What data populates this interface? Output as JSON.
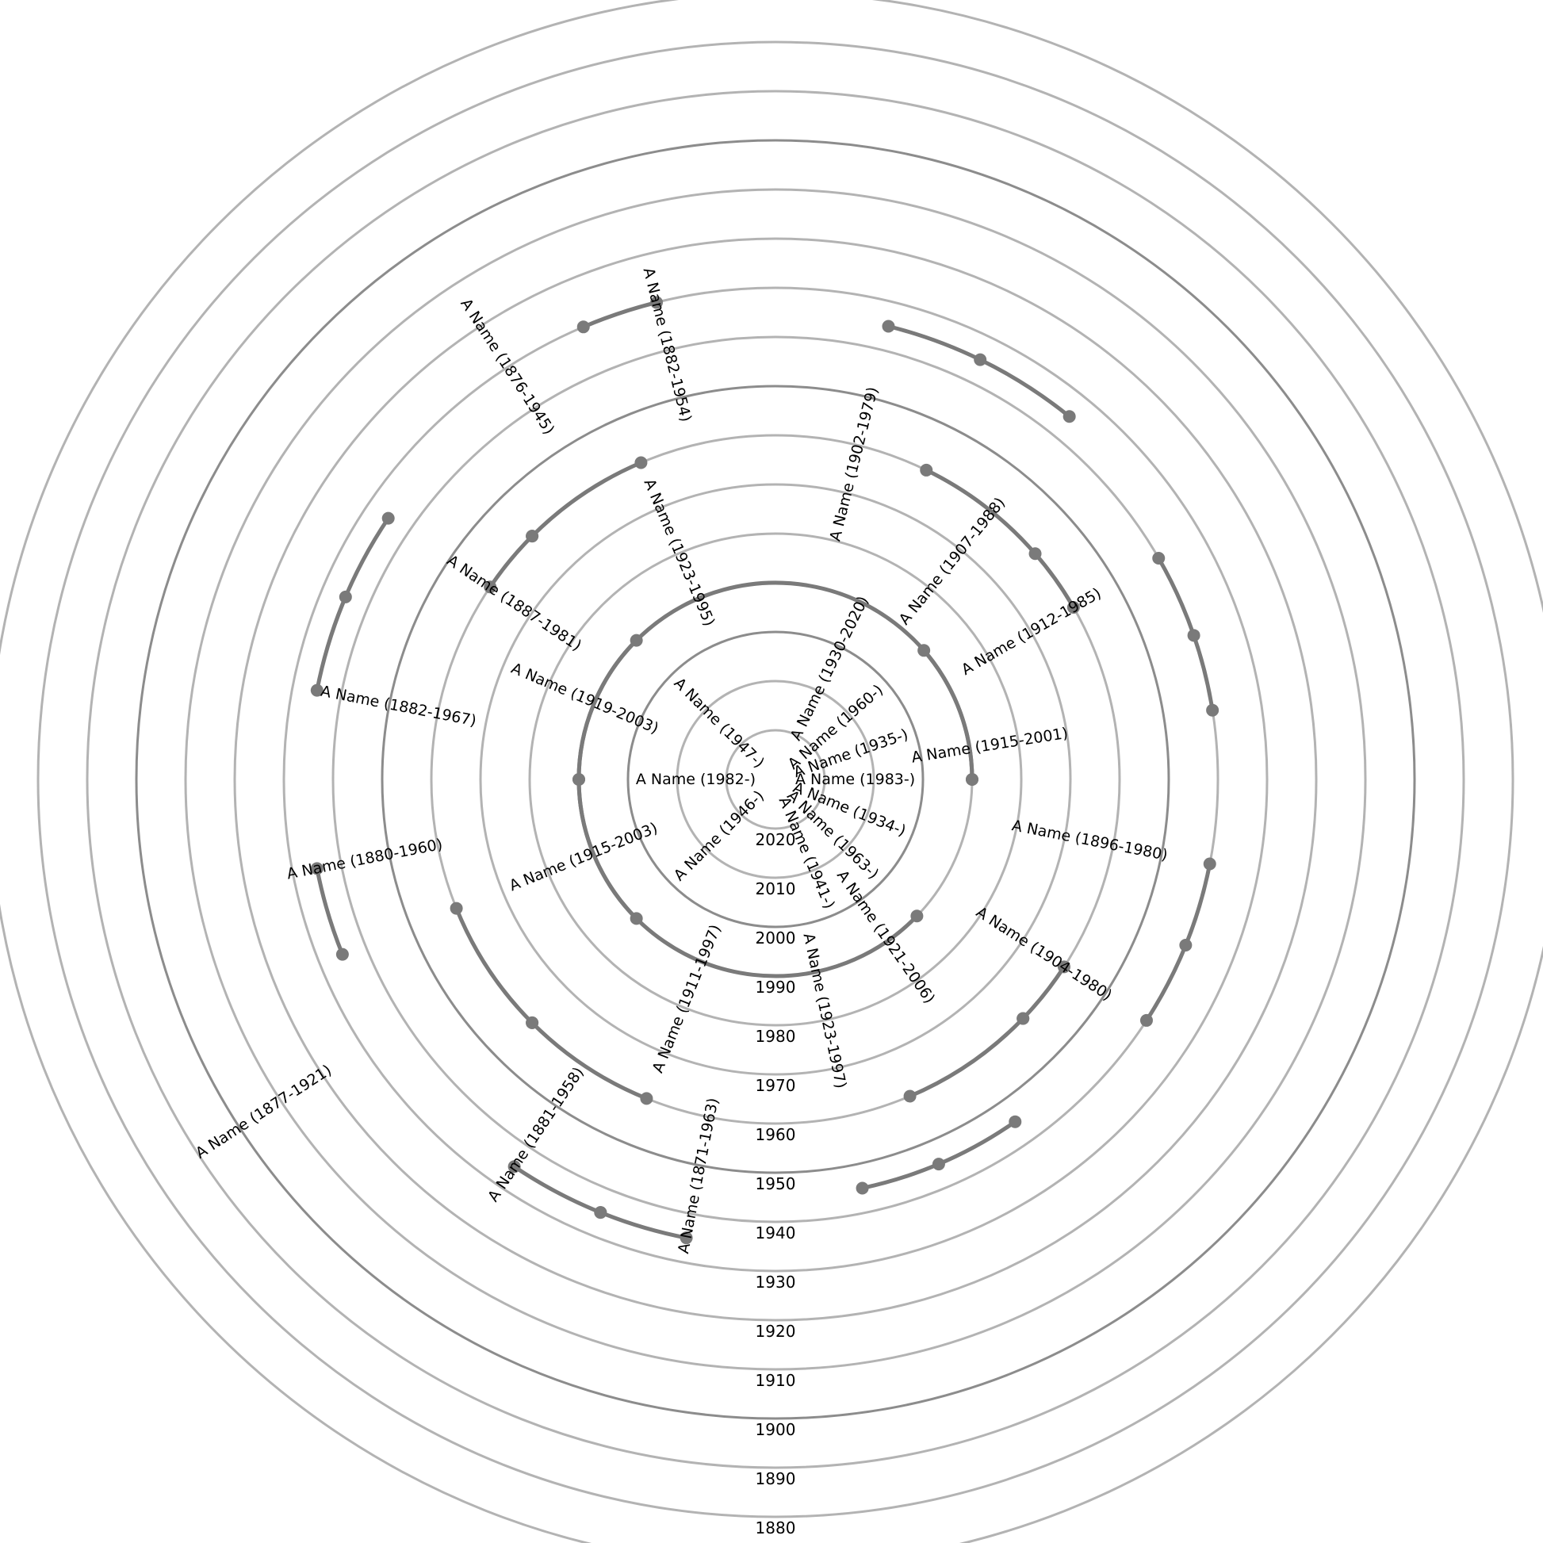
{
  "chart_data": {
    "type": "radial-timeline",
    "title": "",
    "radial_axis": {
      "center_value": 2030,
      "outer_value": 1870,
      "tick_labels": [
        "2020",
        "2010",
        "2000",
        "1990",
        "1980",
        "1970",
        "1960",
        "1950",
        "1940",
        "1930",
        "1920",
        "1910",
        "1900",
        "1890",
        "1880"
      ],
      "major_rings": [
        1900,
        1950,
        2000
      ],
      "grid": true
    },
    "people": [
      {
        "id": 1,
        "label": "A Name (1983-)",
        "birth": 1983,
        "death": null,
        "angle": 0,
        "color": "#c85a15"
      },
      {
        "id": 2,
        "label": "A Name (1915-2001)",
        "birth": 1915,
        "death": 2001,
        "angle": 9,
        "color": "#eebf9f"
      },
      {
        "id": 3,
        "label": "A Name (1935-)",
        "birth": 1935,
        "death": null,
        "angle": 19,
        "color": "#e5a57a"
      },
      {
        "id": 4,
        "label": "A Name (1912-1985)",
        "birth": 1912,
        "death": 1985,
        "angle": 30,
        "color": "#e5a57a"
      },
      {
        "id": 5,
        "label": "A Name (1960-)",
        "birth": 1960,
        "death": null,
        "angle": 41,
        "color": "#cc6220"
      },
      {
        "id": 6,
        "label": "A Name (1907-1988)",
        "birth": 1907,
        "death": 1988,
        "angle": 51,
        "color": "#dc864a"
      },
      {
        "id": 7,
        "label": "A Name (1930-2020)",
        "birth": 1930,
        "death": 2020,
        "angle": 64,
        "color": "#cc6220"
      },
      {
        "id": 8,
        "label": "A Name (1902-1979)",
        "birth": 1902,
        "death": 1979,
        "angle": 76,
        "color": "#cc6220"
      },
      {
        "id": 9,
        "label": "A Name (1882-1954)",
        "birth": 1882,
        "death": 1954,
        "angle": 104,
        "color": "#daf0b0"
      },
      {
        "id": 10,
        "label": "A Name (1876-1945)",
        "birth": 1876,
        "death": 1945,
        "angle": 123,
        "color": "#bfdf8c"
      },
      {
        "id": 11,
        "label": "A Name (1923-1995)",
        "birth": 1923,
        "death": 1995,
        "angle": 113,
        "color": "#bfdf8c"
      },
      {
        "id": 12,
        "label": "A Name (1947-)",
        "birth": 1947,
        "death": null,
        "angle": 135,
        "color": "#80ae38"
      },
      {
        "id": 13,
        "label": "A Name (1887-1981)",
        "birth": 1887,
        "death": 1981,
        "angle": 146,
        "color": "#a3c964"
      },
      {
        "id": 14,
        "label": "A Name (1919-2003)",
        "birth": 1919,
        "death": 2003,
        "angle": 157,
        "color": "#80ae38"
      },
      {
        "id": 15,
        "label": "A Name (1882-1967)",
        "birth": 1882,
        "death": 1967,
        "angle": 169,
        "color": "#80ae38"
      },
      {
        "id": 16,
        "label": "A Name (1982-)",
        "birth": 1982,
        "death": null,
        "angle": 180,
        "color": "#3b7bbf"
      },
      {
        "id": 17,
        "label": "A Name (1915-2003)",
        "birth": 1915,
        "death": 2003,
        "angle": 202,
        "color": "#86aedb"
      },
      {
        "id": 18,
        "label": "A Name (1880-1960)",
        "birth": 1880,
        "death": 1960,
        "angle": 191,
        "color": "#a5c3e5"
      },
      {
        "id": 19,
        "label": "A Name (1946-)",
        "birth": 1946,
        "death": null,
        "angle": 225,
        "color": "#4a84c4"
      },
      {
        "id": 20,
        "label": "A Name (1877-1921)",
        "birth": 1877,
        "death": 1921,
        "angle": 213,
        "color": "#86aedb"
      },
      {
        "id": 21,
        "label": "A Name (1881-1958)",
        "birth": 1881,
        "death": 1958,
        "angle": 236,
        "color": "#6a9ad2"
      },
      {
        "id": 22,
        "label": "A Name (1911-1997)",
        "birth": 1911,
        "death": 1997,
        "angle": 248,
        "color": "#4a84c4"
      },
      {
        "id": 23,
        "label": "A Name (1871-1963)",
        "birth": 1871,
        "death": 1963,
        "angle": 259,
        "color": "#4a84c4"
      },
      {
        "id": 24,
        "label": "A Name (1923-1997)",
        "birth": 1923,
        "death": 1997,
        "angle": 282,
        "color": "#f5eab0"
      },
      {
        "id": 25,
        "label": "A Name (1941-)",
        "birth": 1941,
        "death": null,
        "angle": 293,
        "color": "#f3e39a"
      },
      {
        "id": 26,
        "label": "A Name (1921-2006)",
        "birth": 1921,
        "death": 2006,
        "angle": 305,
        "color": "#f0e184"
      },
      {
        "id": 27,
        "label": "A Name (1963-)",
        "birth": 1963,
        "death": null,
        "angle": 316,
        "color": "#f0dc50"
      },
      {
        "id": 28,
        "label": "A Name (1904-1980)",
        "birth": 1904,
        "death": 1980,
        "angle": 327,
        "color": "#f0e070"
      },
      {
        "id": 29,
        "label": "A Name (1934-)",
        "birth": 1934,
        "death": null,
        "angle": 338,
        "color": "#f3e060"
      },
      {
        "id": 30,
        "label": "A Name (1896-1980)",
        "birth": 1896,
        "death": 1980,
        "angle": 349,
        "color": "#f3e060"
      }
    ],
    "connectors": [
      {
        "points": [
          {
            "id": 8,
            "year": 1935
          },
          {
            "id": 7,
            "year": 1935
          },
          {
            "id": 6,
            "year": 1935
          }
        ]
      },
      {
        "points": [
          {
            "id": 7,
            "year": 1960
          },
          {
            "id": 5,
            "year": 1960
          },
          {
            "id": 4,
            "year": 1960
          }
        ]
      },
      {
        "points": [
          {
            "id": 4,
            "year": 1940
          },
          {
            "id": 3,
            "year": 1940
          },
          {
            "id": 2,
            "year": 1940
          }
        ]
      },
      {
        "points": [
          {
            "id": 5,
            "year": 1990
          },
          {
            "id": 1,
            "year": 1990
          }
        ]
      },
      {
        "points": [
          {
            "id": 9,
            "year": 1930
          },
          {
            "id": 11,
            "year": 1930
          }
        ]
      },
      {
        "points": [
          {
            "id": 11,
            "year": 1960
          },
          {
            "id": 12,
            "year": 1960
          }
        ]
      },
      {
        "points": [
          {
            "id": 12,
            "year": 1990
          },
          {
            "id": 16,
            "year": 1990
          }
        ]
      },
      {
        "points": [
          {
            "id": 13,
            "year": 1935
          },
          {
            "id": 15,
            "year": 1935
          },
          {
            "id": 14,
            "year": 1935
          }
        ]
      },
      {
        "points": [
          {
            "id": 13,
            "year": 1960
          },
          {
            "id": 12,
            "year": 1960
          }
        ]
      },
      {
        "points": [
          {
            "id": 16,
            "year": 1990
          },
          {
            "id": 19,
            "year": 1990
          }
        ]
      },
      {
        "points": [
          {
            "id": 18,
            "year": 1935
          },
          {
            "id": 17,
            "year": 1935
          }
        ]
      },
      {
        "points": [
          {
            "id": 17,
            "year": 1960
          },
          {
            "id": 19,
            "year": 1960
          }
        ]
      },
      {
        "points": [
          {
            "id": 19,
            "year": 1960
          },
          {
            "id": 22,
            "year": 1960
          }
        ]
      },
      {
        "points": [
          {
            "id": 22,
            "year": 1935
          },
          {
            "id": 23,
            "year": 1935
          }
        ]
      },
      {
        "points": [
          {
            "id": 21,
            "year": 1935
          },
          {
            "id": 22,
            "year": 1935
          }
        ]
      },
      {
        "points": [
          {
            "id": 1,
            "year": 1990
          },
          {
            "id": 27,
            "year": 1990
          }
        ]
      },
      {
        "points": [
          {
            "id": 27,
            "year": 1960
          },
          {
            "id": 28,
            "year": 1960
          }
        ]
      },
      {
        "points": [
          {
            "id": 25,
            "year": 1960
          },
          {
            "id": 27,
            "year": 1960
          }
        ]
      },
      {
        "points": [
          {
            "id": 29,
            "year": 1940
          },
          {
            "id": 30,
            "year": 1940
          },
          {
            "id": 28,
            "year": 1940
          }
        ]
      },
      {
        "points": [
          {
            "id": 24,
            "year": 1945
          },
          {
            "id": 25,
            "year": 1945
          },
          {
            "id": 26,
            "year": 1945
          }
        ]
      }
    ]
  }
}
